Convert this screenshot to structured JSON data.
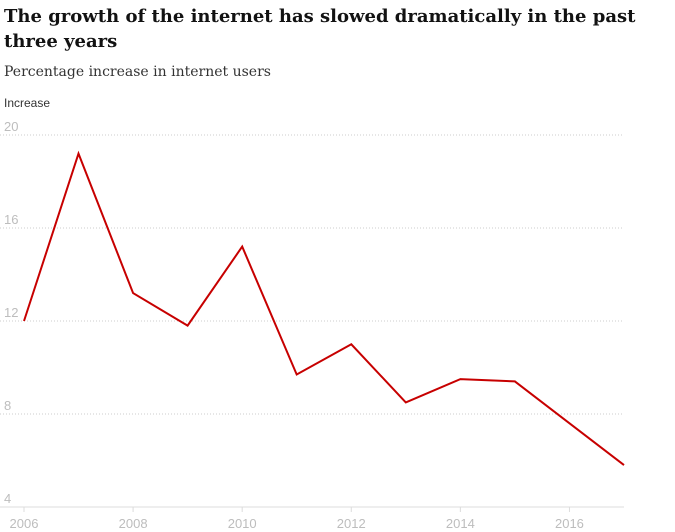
{
  "chart_data": {
    "type": "line",
    "title": "The growth of the internet has slowed dramatically in the past three years",
    "subtitle": "Percentage increase in internet users",
    "ylabel": "Increase",
    "xlabel": "",
    "ylim": [
      4,
      20
    ],
    "yticks": [
      4,
      8,
      12,
      16,
      20
    ],
    "xlim": [
      2006,
      2017
    ],
    "xticks": [
      2006,
      2008,
      2010,
      2012,
      2014,
      2016
    ],
    "series": [
      {
        "name": "Increase",
        "color": "#c70000",
        "x": [
          2006,
          2007,
          2008,
          2009,
          2010,
          2011,
          2012,
          2013,
          2014,
          2015,
          2016,
          2017
        ],
        "values": [
          12.0,
          19.2,
          13.2,
          11.8,
          15.2,
          9.7,
          11.0,
          8.5,
          9.5,
          9.4,
          7.6,
          5.8
        ]
      }
    ]
  }
}
